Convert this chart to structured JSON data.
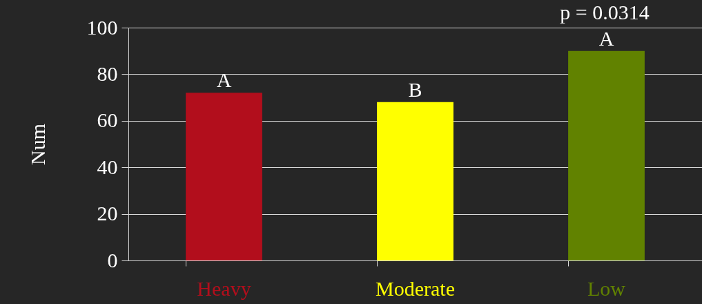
{
  "chart_data": {
    "type": "bar",
    "ylabel": "Num",
    "categories": [
      "Heavy",
      "Moderate",
      "Low"
    ],
    "values": [
      72,
      68,
      90
    ],
    "colors": [
      "#b20e1c",
      "#ffff00",
      "#618200"
    ],
    "ylim": [
      0,
      100
    ],
    "yticks": [
      0,
      20,
      40,
      60,
      80,
      100
    ],
    "grid": "y",
    "legend": false,
    "annotations": [
      {
        "text": "A",
        "x": "Heavy",
        "y": 72
      },
      {
        "text": "B",
        "x": "Moderate",
        "y": 68
      },
      {
        "text": "A",
        "x": "Low",
        "y": 90
      },
      "p = 0.0314"
    ]
  }
}
